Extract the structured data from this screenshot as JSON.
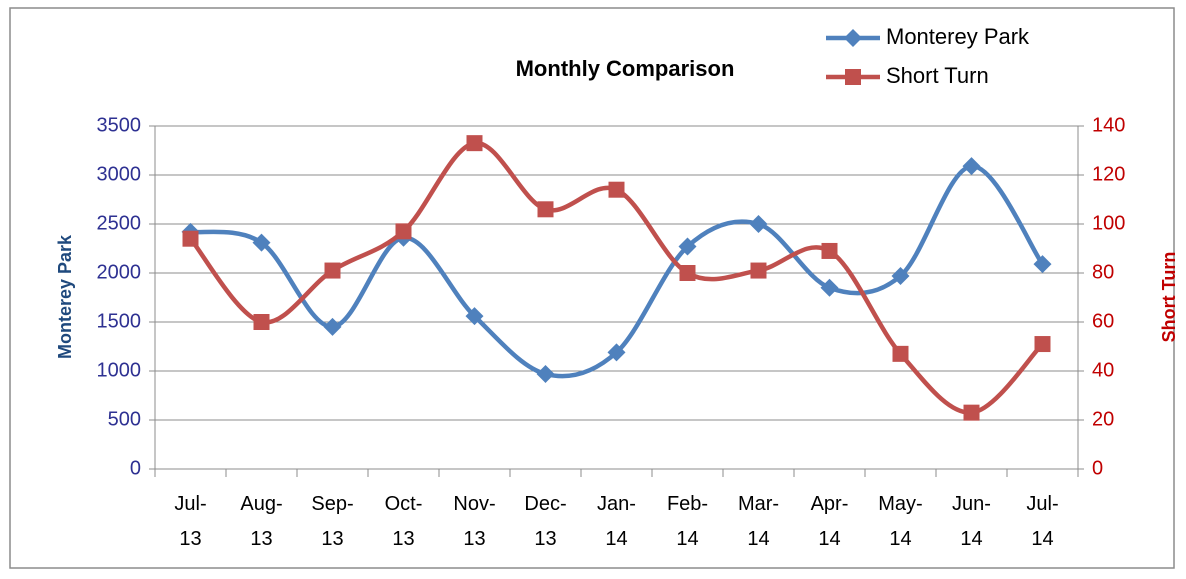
{
  "chart_data": {
    "type": "line",
    "title": "Monthly Comparison",
    "categories": [
      "Jul-13",
      "Aug-13",
      "Sep-13",
      "Oct-13",
      "Nov-13",
      "Dec-13",
      "Jan-14",
      "Feb-14",
      "Mar-14",
      "Apr-14",
      "May-14",
      "Jun-14",
      "Jul-14"
    ],
    "series": [
      {
        "name": "Monterey Park",
        "color": "#4f81bd",
        "marker": "diamond",
        "values": [
          2420,
          2310,
          1450,
          2360,
          1560,
          970,
          1190,
          2270,
          2500,
          1850,
          1970,
          3090,
          2090
        ]
      },
      {
        "name": "Short Turn",
        "color": "#c0504d",
        "marker": "square",
        "axis": "y2",
        "values": [
          94,
          60,
          81,
          97,
          133,
          106,
          114,
          80,
          81,
          89,
          47,
          23,
          51
        ]
      }
    ],
    "y_label": "Monterey Park",
    "y2_label": "Short Turn",
    "ylim": [
      0,
      3500
    ],
    "yticks": [
      0,
      500,
      1000,
      1500,
      2000,
      2500,
      3000,
      3500
    ],
    "y2lim": [
      0,
      140
    ],
    "y2ticks": [
      0,
      20,
      40,
      60,
      80,
      100,
      120,
      140
    ],
    "grid": true,
    "legend": "upper right",
    "smooth": true
  }
}
